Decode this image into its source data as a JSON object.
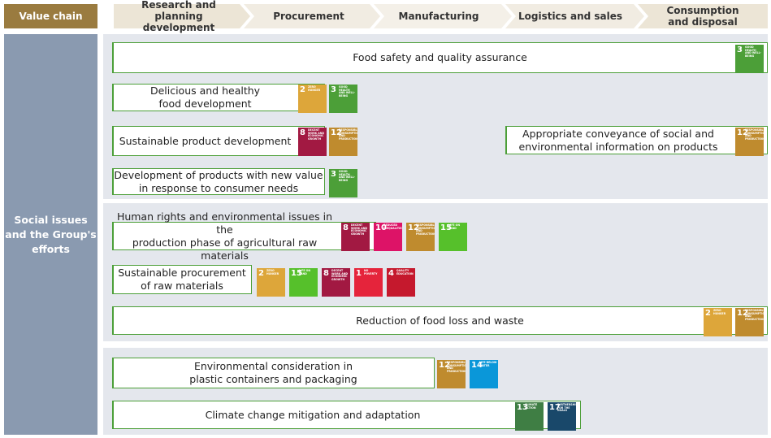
{
  "header": {
    "value_chain": "Value chain",
    "stages": [
      "Research and planning\ndevelopment",
      "Procurement",
      "Manufacturing",
      "Logistics and sales",
      "Consumption\nand disposal"
    ]
  },
  "side_label": "Social issues\nand the Group's\nefforts",
  "issues": [
    {
      "label": "Food safety and quality assurance",
      "sdgs": [
        {
          "number": "3",
          "name": "GOOD HEALTH AND WELL-BEING",
          "color": "#4c9f38"
        }
      ]
    },
    {
      "label": "Delicious and healthy\nfood development",
      "sdgs": [
        {
          "number": "2",
          "name": "ZERO HUNGER",
          "color": "#dda63a"
        },
        {
          "number": "3",
          "name": "GOOD HEALTH AND WELL-BEING",
          "color": "#4c9f38"
        }
      ]
    },
    {
      "label": "Sustainable product development",
      "sdgs": [
        {
          "number": "8",
          "name": "DECENT WORK AND ECONOMIC GROWTH",
          "color": "#a21942"
        },
        {
          "number": "12",
          "name": "RESPONSIBLE CONSUMPTION AND PRODUCTION",
          "color": "#bf8b2e"
        }
      ]
    },
    {
      "label": "Appropriate conveyance of social and\nenvironmental information on products",
      "sdgs": [
        {
          "number": "12",
          "name": "RESPONSIBLE CONSUMPTION AND PRODUCTION",
          "color": "#bf8b2e"
        }
      ]
    },
    {
      "label": "Development of products with new value\nin response to consumer needs",
      "sdgs": [
        {
          "number": "3",
          "name": "GOOD HEALTH AND WELL-BEING",
          "color": "#4c9f38"
        }
      ]
    },
    {
      "label": "Human rights and environmental issues in the\nproduction phase of agricultural raw materials",
      "sdgs": [
        {
          "number": "8",
          "name": "DECENT WORK AND ECONOMIC GROWTH",
          "color": "#a21942"
        },
        {
          "number": "10",
          "name": "REDUCED INEQUALITIES",
          "color": "#dd1367"
        },
        {
          "number": "12",
          "name": "RESPONSIBLE CONSUMPTION AND PRODUCTION",
          "color": "#bf8b2e"
        },
        {
          "number": "15",
          "name": "LIFE ON LAND",
          "color": "#56c02b"
        }
      ]
    },
    {
      "label": "Sustainable procurement\nof raw materials",
      "sdgs": [
        {
          "number": "2",
          "name": "ZERO HUNGER",
          "color": "#dda63a"
        },
        {
          "number": "15",
          "name": "LIFE ON LAND",
          "color": "#56c02b"
        },
        {
          "number": "8",
          "name": "DECENT WORK AND ECONOMIC GROWTH",
          "color": "#a21942"
        },
        {
          "number": "1",
          "name": "NO POVERTY",
          "color": "#e5243b"
        },
        {
          "number": "4",
          "name": "QUALITY EDUCATION",
          "color": "#c5192d"
        }
      ]
    },
    {
      "label": "Reduction of food loss and waste",
      "sdgs": [
        {
          "number": "2",
          "name": "ZERO HUNGER",
          "color": "#dda63a"
        },
        {
          "number": "12",
          "name": "RESPONSIBLE CONSUMPTION AND PRODUCTION",
          "color": "#bf8b2e"
        }
      ]
    },
    {
      "label": "Environmental consideration in\nplastic containers and packaging",
      "sdgs": [
        {
          "number": "12",
          "name": "RESPONSIBLE CONSUMPTION AND PRODUCTION",
          "color": "#bf8b2e"
        },
        {
          "number": "14",
          "name": "LIFE BELOW WATER",
          "color": "#0a97d9"
        }
      ]
    },
    {
      "label": "Climate change mitigation and adaptation",
      "sdgs": [
        {
          "number": "13",
          "name": "CLIMATE ACTION",
          "color": "#3f7e44"
        },
        {
          "number": "17",
          "name": "PARTNERSHIPS FOR THE GOALS",
          "color": "#19486a"
        }
      ]
    }
  ]
}
